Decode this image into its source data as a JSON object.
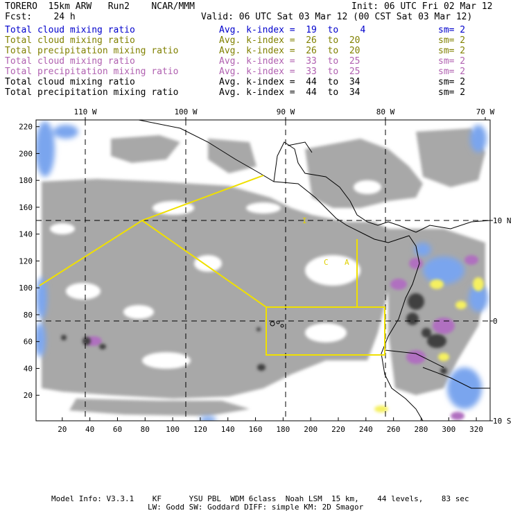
{
  "header": {
    "model": "TORERO  15km ARW   Run2    NCAR/MMM",
    "init": "Init: 06 UTC Fri 02 Mar 12",
    "fcst": "Fcst:    24 h",
    "valid": "Valid: 06 UTC Sat 03 Mar 12 (00 CST Sat 03 Mar 12)"
  },
  "legend": [
    {
      "field": "Total cloud mixing ratio",
      "kindex": "Avg. k-index =  19  to    4",
      "sm": "sm= 2",
      "color": "#0000cc"
    },
    {
      "field": "Total cloud mixing ratio",
      "kindex": "Avg. k-index =  26  to  20",
      "sm": "sm= 2",
      "color": "#808000"
    },
    {
      "field": "Total precipitation mixing ratio",
      "kindex": "Avg. k-index =  26  to  20",
      "sm": "sm= 2",
      "color": "#808000"
    },
    {
      "field": "Total cloud mixing ratio",
      "kindex": "Avg. k-index =  33  to  25",
      "sm": "sm= 2",
      "color": "#b060b0"
    },
    {
      "field": "Total precipitation mixing ratio",
      "kindex": "Avg. k-index =  33  to  25",
      "sm": "sm= 2",
      "color": "#b060b0"
    },
    {
      "field": "Total cloud mixing ratio",
      "kindex": "Avg. k-index =  44  to  34",
      "sm": "sm= 2",
      "color": "#000000"
    },
    {
      "field": "Total precipitation mixing ratio",
      "kindex": "Avg. k-index =  44  to  34",
      "sm": "sm= 2",
      "color": "#000000"
    }
  ],
  "map": {
    "lon_labels": [
      "110 W",
      "100 W",
      "90 W",
      "80 W",
      "70 W"
    ],
    "lat_labels": [
      "10 N",
      "0",
      "10 S"
    ],
    "x_ticks": [
      "20",
      "40",
      "60",
      "80",
      "100",
      "120",
      "140",
      "160",
      "180",
      "200",
      "220",
      "240",
      "260",
      "280",
      "300",
      "320"
    ],
    "y_ticks": [
      "220",
      "200",
      "180",
      "160",
      "140",
      "120",
      "100",
      "80",
      "60",
      "40",
      "20"
    ],
    "grid_x_range": [
      1,
      330
    ],
    "grid_y_range": [
      1,
      225
    ],
    "overlay_letters": [
      "I",
      "C",
      "A"
    ]
  },
  "footer": {
    "line1": "Model Info: V3.3.1    KF      YSU PBL  WDM 6class  Noah LSM  15 km,    44 levels,    83 sec",
    "line2": "LW: Godd SW: Goddard DIFF: simple KM: 2D Smagor"
  }
}
